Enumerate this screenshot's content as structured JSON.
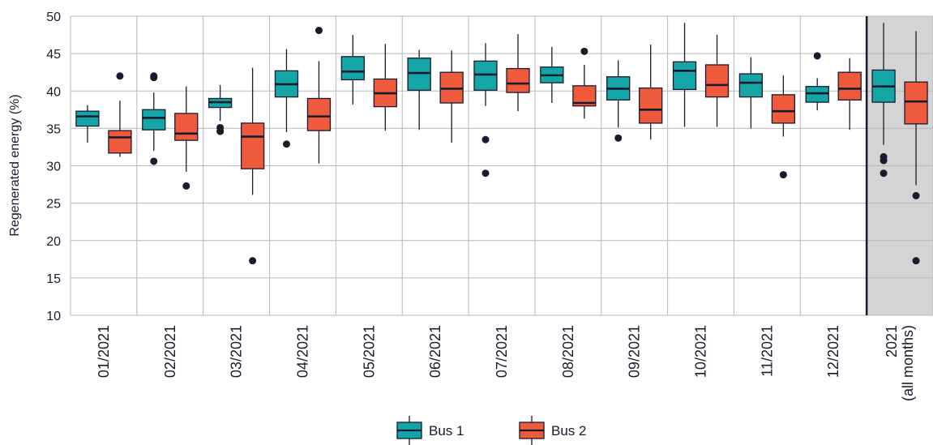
{
  "chart_data": {
    "type": "box",
    "ylabel": "Regenerated energy (%)",
    "ylim": [
      10,
      50
    ],
    "yticks": [
      10,
      15,
      20,
      25,
      30,
      35,
      40,
      45,
      50
    ],
    "grid": true,
    "legend_position": "bottom",
    "categories": [
      "01/2021",
      "02/2021",
      "03/2021",
      "04/2021",
      "05/2021",
      "06/2021",
      "07/2021",
      "08/2021",
      "09/2021",
      "10/2021",
      "11/2021",
      "12/2021",
      "2021\n(all months)"
    ],
    "highlight_category": "2021\n(all months)",
    "series": [
      {
        "name": "Bus 1",
        "color": "#14a6a6",
        "boxes": [
          {
            "wlo": 33.1,
            "q1": 35.3,
            "med": 36.6,
            "q3": 37.3,
            "whi": 38.1,
            "outliers": []
          },
          {
            "wlo": 32.0,
            "q1": 34.8,
            "med": 36.4,
            "q3": 37.5,
            "whi": 39.8,
            "outliers": [
              30.6,
              41.8,
              42.0
            ]
          },
          {
            "wlo": 36.0,
            "q1": 37.8,
            "med": 38.5,
            "q3": 39.0,
            "whi": 40.8,
            "outliers": [
              34.6,
              35.1
            ]
          },
          {
            "wlo": 34.5,
            "q1": 39.2,
            "med": 40.9,
            "q3": 42.7,
            "whi": 45.6,
            "outliers": [
              32.9
            ]
          },
          {
            "wlo": 38.2,
            "q1": 41.5,
            "med": 42.6,
            "q3": 44.6,
            "whi": 47.5,
            "outliers": []
          },
          {
            "wlo": 34.8,
            "q1": 40.1,
            "med": 42.4,
            "q3": 44.4,
            "whi": 45.5,
            "outliers": []
          },
          {
            "wlo": 38.0,
            "q1": 40.1,
            "med": 42.2,
            "q3": 44.0,
            "whi": 46.4,
            "outliers": [
              29.0,
              33.5
            ]
          },
          {
            "wlo": 38.4,
            "q1": 41.1,
            "med": 42.1,
            "q3": 43.2,
            "whi": 45.9,
            "outliers": []
          },
          {
            "wlo": 35.1,
            "q1": 38.8,
            "med": 40.3,
            "q3": 41.9,
            "whi": 44.1,
            "outliers": [
              33.7
            ]
          },
          {
            "wlo": 35.2,
            "q1": 40.2,
            "med": 42.7,
            "q3": 43.9,
            "whi": 49.1,
            "outliers": []
          },
          {
            "wlo": 35.0,
            "q1": 39.2,
            "med": 41.1,
            "q3": 42.3,
            "whi": 44.5,
            "outliers": []
          },
          {
            "wlo": 37.4,
            "q1": 38.5,
            "med": 39.7,
            "q3": 40.6,
            "whi": 41.7,
            "outliers": [
              44.7
            ]
          },
          {
            "wlo": 32.8,
            "q1": 38.5,
            "med": 40.6,
            "q3": 42.8,
            "whi": 49.1,
            "outliers": [
              29.0,
              30.7,
              31.2
            ]
          }
        ]
      },
      {
        "name": "Bus 2",
        "color": "#f05a3c",
        "boxes": [
          {
            "wlo": 31.2,
            "q1": 31.7,
            "med": 33.8,
            "q3": 34.7,
            "whi": 38.7,
            "outliers": [
              42.0
            ]
          },
          {
            "wlo": 29.2,
            "q1": 33.4,
            "med": 34.3,
            "q3": 37.0,
            "whi": 40.6,
            "outliers": [
              27.3
            ]
          },
          {
            "wlo": 26.1,
            "q1": 29.6,
            "med": 33.9,
            "q3": 35.7,
            "whi": 43.1,
            "outliers": [
              17.3
            ]
          },
          {
            "wlo": 30.3,
            "q1": 34.7,
            "med": 36.6,
            "q3": 39.0,
            "whi": 44.0,
            "outliers": [
              48.1
            ]
          },
          {
            "wlo": 34.7,
            "q1": 37.9,
            "med": 39.7,
            "q3": 41.6,
            "whi": 46.3,
            "outliers": []
          },
          {
            "wlo": 33.1,
            "q1": 38.4,
            "med": 40.3,
            "q3": 42.5,
            "whi": 45.4,
            "outliers": []
          },
          {
            "wlo": 37.3,
            "q1": 39.8,
            "med": 41.0,
            "q3": 43.0,
            "whi": 47.6,
            "outliers": []
          },
          {
            "wlo": 36.3,
            "q1": 38.0,
            "med": 38.4,
            "q3": 40.7,
            "whi": 43.5,
            "outliers": [
              45.3
            ]
          },
          {
            "wlo": 33.5,
            "q1": 35.7,
            "med": 37.5,
            "q3": 40.4,
            "whi": 46.2,
            "outliers": []
          },
          {
            "wlo": 35.2,
            "q1": 39.2,
            "med": 40.8,
            "q3": 43.5,
            "whi": 47.5,
            "outliers": []
          },
          {
            "wlo": 33.9,
            "q1": 35.7,
            "med": 37.3,
            "q3": 39.5,
            "whi": 42.1,
            "outliers": [
              28.8
            ]
          },
          {
            "wlo": 34.8,
            "q1": 38.8,
            "med": 40.3,
            "q3": 42.5,
            "whi": 44.4,
            "outliers": []
          },
          {
            "wlo": 27.4,
            "q1": 35.6,
            "med": 38.6,
            "q3": 41.2,
            "whi": 48.0,
            "outliers": [
              17.3,
              26.0
            ]
          }
        ]
      }
    ]
  },
  "colors": {
    "grid": "#b8b8b8",
    "axis_text": "#1a1a2e",
    "median": "#1a1a2e",
    "outlier": "#1a1a2e",
    "highlight_bg": "#d4d4d4",
    "highlight_border": "#1a1a2e"
  }
}
